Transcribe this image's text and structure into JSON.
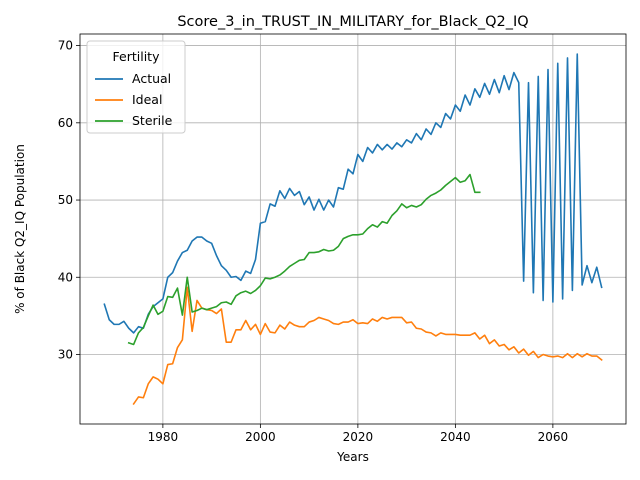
{
  "chart_data": {
    "type": "line",
    "title": "Score_3_in_TRUST_IN_MILITARY_for_Black_Q2_IQ",
    "xlabel": "Years",
    "ylabel": "% of Black Q2_IQ Population",
    "xlim": [
      1963,
      2075
    ],
    "ylim": [
      21,
      71.5
    ],
    "x_ticks": [
      1980,
      2000,
      2020,
      2040,
      2060
    ],
    "y_ticks": [
      30,
      40,
      50,
      60,
      70
    ],
    "grid": true,
    "legend": {
      "title": "Fertility",
      "placement": "top-left"
    },
    "series": [
      {
        "name": "Actual",
        "color": "#1f77b4",
        "x": [
          1968,
          1969,
          1970,
          1971,
          1972,
          1973,
          1974,
          1975,
          1976,
          1977,
          1978,
          1979,
          1980,
          1981,
          1982,
          1983,
          1984,
          1985,
          1986,
          1987,
          1988,
          1989,
          1990,
          1991,
          1992,
          1993,
          1994,
          1995,
          1996,
          1997,
          1998,
          1999,
          2000,
          2001,
          2002,
          2003,
          2004,
          2005,
          2006,
          2007,
          2008,
          2009,
          2010,
          2011,
          2012,
          2013,
          2014,
          2015,
          2016,
          2017,
          2018,
          2019,
          2020,
          2021,
          2022,
          2023,
          2024,
          2025,
          2026,
          2027,
          2028,
          2029,
          2030,
          2031,
          2032,
          2033,
          2034,
          2035,
          2036,
          2037,
          2038,
          2039,
          2040,
          2041,
          2042,
          2043,
          2044,
          2045,
          2046,
          2047,
          2048,
          2049,
          2050,
          2051,
          2052,
          2053,
          2054,
          2055,
          2056,
          2057,
          2058,
          2059,
          2060,
          2061,
          2062,
          2063,
          2064,
          2065,
          2066,
          2067,
          2068,
          2069,
          2070
        ],
        "values": [
          36.5,
          34.5,
          33.9,
          33.9,
          34.3,
          33.4,
          32.8,
          33.6,
          33.4,
          35.2,
          36.2,
          36.7,
          37.2,
          40.0,
          40.6,
          42.1,
          43.2,
          43.5,
          44.7,
          45.2,
          45.2,
          44.7,
          44.4,
          42.8,
          41.5,
          40.9,
          40.0,
          40.1,
          39.6,
          40.8,
          40.5,
          42.3,
          47.0,
          47.2,
          49.5,
          49.2,
          51.2,
          50.2,
          51.5,
          50.6,
          51.1,
          49.4,
          50.4,
          48.7,
          50.1,
          48.7,
          50.0,
          49.1,
          51.6,
          51.4,
          54.0,
          53.4,
          55.9,
          55.0,
          56.8,
          56.1,
          57.2,
          56.5,
          57.2,
          56.6,
          57.4,
          56.9,
          57.8,
          57.4,
          58.6,
          57.8,
          59.2,
          58.5,
          60.0,
          59.4,
          61.2,
          60.5,
          62.3,
          61.5,
          63.6,
          62.3,
          64.4,
          63.3,
          65.1,
          63.7,
          65.6,
          63.9,
          66.1,
          64.3,
          66.5,
          65.2,
          39.5,
          65.2,
          38.0,
          66.0,
          37.0,
          66.9,
          36.8,
          67.7,
          37.2,
          68.4,
          38.3,
          68.9,
          39.0,
          41.5,
          39.3,
          41.3,
          38.7
        ]
      },
      {
        "name": "Ideal",
        "color": "#ff7f0e",
        "x": [
          1974,
          1975,
          1976,
          1977,
          1978,
          1979,
          1980,
          1981,
          1982,
          1983,
          1984,
          1985,
          1986,
          1987,
          1988,
          1989,
          1990,
          1991,
          1992,
          1993,
          1994,
          1995,
          1996,
          1997,
          1998,
          1999,
          2000,
          2001,
          2002,
          2003,
          2004,
          2005,
          2006,
          2007,
          2008,
          2009,
          2010,
          2011,
          2012,
          2013,
          2014,
          2015,
          2016,
          2017,
          2018,
          2019,
          2020,
          2021,
          2022,
          2023,
          2024,
          2025,
          2026,
          2027,
          2028,
          2029,
          2030,
          2031,
          2032,
          2033,
          2034,
          2035,
          2036,
          2037,
          2038,
          2039,
          2040,
          2041,
          2042,
          2043,
          2044,
          2045,
          2046,
          2047,
          2048,
          2049,
          2050,
          2051,
          2052,
          2053,
          2054,
          2055,
          2056,
          2057,
          2058,
          2059,
          2060,
          2061,
          2062,
          2063,
          2064,
          2065,
          2066,
          2067,
          2068,
          2069,
          2070
        ],
        "values": [
          23.6,
          24.5,
          24.4,
          26.2,
          27.1,
          26.8,
          26.2,
          28.7,
          28.8,
          30.9,
          31.9,
          38.7,
          33.0,
          37.0,
          36.0,
          35.8,
          35.7,
          35.3,
          35.9,
          31.6,
          31.6,
          33.2,
          33.2,
          34.4,
          33.2,
          33.9,
          32.6,
          34.0,
          32.9,
          32.8,
          33.8,
          33.3,
          34.2,
          33.8,
          33.6,
          33.6,
          34.2,
          34.4,
          34.8,
          34.6,
          34.4,
          34.0,
          33.9,
          34.2,
          34.2,
          34.5,
          34.0,
          34.1,
          34.0,
          34.6,
          34.3,
          34.8,
          34.6,
          34.8,
          34.8,
          34.8,
          34.1,
          34.2,
          33.4,
          33.3,
          32.9,
          32.8,
          32.4,
          32.8,
          32.6,
          32.6,
          32.6,
          32.5,
          32.5,
          32.5,
          32.8,
          32.0,
          32.5,
          31.4,
          31.9,
          31.1,
          31.3,
          30.6,
          31.0,
          30.2,
          30.7,
          29.9,
          30.4,
          29.6,
          30.0,
          29.8,
          29.7,
          29.8,
          29.6,
          30.1,
          29.6,
          30.1,
          29.7,
          30.1,
          29.8,
          29.8,
          29.3
        ]
      },
      {
        "name": "Sterile",
        "color": "#2ca02c",
        "x": [
          1973,
          1974,
          1975,
          1976,
          1977,
          1978,
          1979,
          1980,
          1981,
          1982,
          1983,
          1984,
          1985,
          1986,
          1987,
          1988,
          1989,
          1990,
          1991,
          1992,
          1993,
          1994,
          1995,
          1996,
          1997,
          1998,
          1999,
          2000,
          2001,
          2002,
          2003,
          2004,
          2005,
          2006,
          2007,
          2008,
          2009,
          2010,
          2011,
          2012,
          2013,
          2014,
          2015,
          2016,
          2017,
          2018,
          2019,
          2020,
          2021,
          2022,
          2023,
          2024,
          2025,
          2026,
          2027,
          2028,
          2029,
          2030,
          2031,
          2032,
          2033,
          2034,
          2035,
          2036,
          2037,
          2038,
          2039,
          2040,
          2041,
          2042,
          2043,
          2044,
          2045
        ],
        "values": [
          31.5,
          31.3,
          32.8,
          33.5,
          35.0,
          36.4,
          35.2,
          35.6,
          37.5,
          37.4,
          38.6,
          35.1,
          40.0,
          35.5,
          35.7,
          36.0,
          35.8,
          36.0,
          36.2,
          36.7,
          36.8,
          36.5,
          37.6,
          38.0,
          38.2,
          37.9,
          38.3,
          38.9,
          39.9,
          39.8,
          40.0,
          40.3,
          40.8,
          41.4,
          41.8,
          42.2,
          42.3,
          43.2,
          43.2,
          43.3,
          43.6,
          43.4,
          43.5,
          44.0,
          45.0,
          45.3,
          45.5,
          45.5,
          45.6,
          46.3,
          46.8,
          46.5,
          47.2,
          47.0,
          48.0,
          48.6,
          49.5,
          49.0,
          49.3,
          49.1,
          49.4,
          50.1,
          50.6,
          50.9,
          51.3,
          51.9,
          52.4,
          52.9,
          52.3,
          52.5,
          53.3,
          51.0,
          51.0
        ]
      }
    ]
  }
}
